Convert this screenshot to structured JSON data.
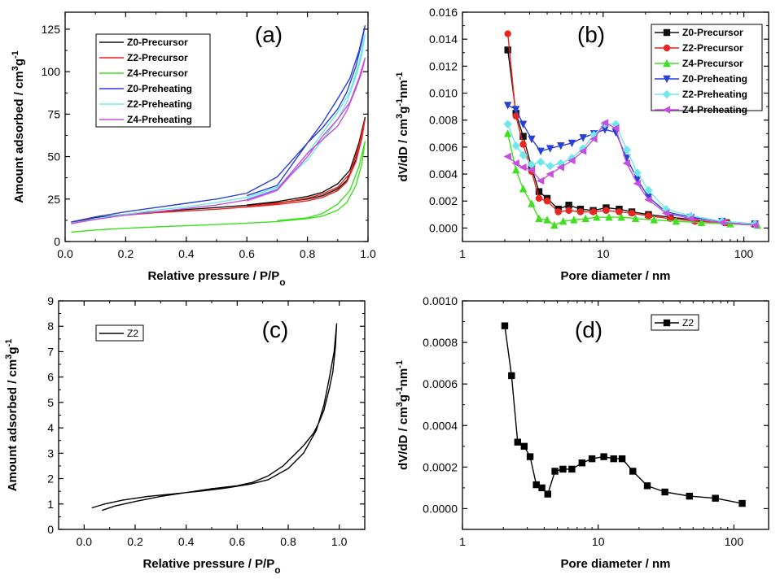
{
  "chart_data": [
    {
      "id": "a",
      "type": "line",
      "panel_label": "(a)",
      "xlabel": "Relative pressure / P/P",
      "xlabel_sub": "o",
      "ylabel": "Amount adsorbed / cm³g⁻¹",
      "xlim": [
        0.0,
        1.0
      ],
      "ylim": [
        0,
        135
      ],
      "xticks": [
        0.0,
        0.2,
        0.4,
        0.6,
        0.8,
        1.0
      ],
      "xtick_labels": [
        "0.0",
        "0.2",
        "0.4",
        "0.6",
        "0.8",
        "1.0"
      ],
      "yticks": [
        0,
        25,
        50,
        75,
        100,
        125
      ],
      "ytick_labels": [
        "0",
        "25",
        "50",
        "75",
        "100",
        "125"
      ],
      "legend_placement": "top-left",
      "series": [
        {
          "name": "Z0-Precursor",
          "color": "#111111",
          "marker": "none",
          "x": [
            0.02,
            0.1,
            0.2,
            0.3,
            0.4,
            0.5,
            0.6,
            0.7,
            0.8,
            0.85,
            0.9,
            0.93,
            0.96,
            0.98,
            0.99,
            0.97,
            0.94,
            0.9,
            0.85,
            0.8,
            0.7,
            0.6
          ],
          "y": [
            11.5,
            14,
            16,
            17.5,
            18.8,
            20,
            21.3,
            22.8,
            25,
            27,
            31,
            36,
            48,
            62,
            73,
            58,
            42,
            34,
            29,
            26.5,
            23.5,
            21.5
          ]
        },
        {
          "name": "Z2-Precursor",
          "color": "#e8251e",
          "marker": "none",
          "x": [
            0.02,
            0.1,
            0.2,
            0.3,
            0.4,
            0.5,
            0.6,
            0.7,
            0.8,
            0.85,
            0.9,
            0.93,
            0.96,
            0.98,
            0.99,
            0.97,
            0.94,
            0.9,
            0.85,
            0.8,
            0.7,
            0.6
          ],
          "y": [
            10.5,
            13.5,
            15.5,
            17,
            18,
            19,
            20.3,
            21.8,
            24,
            26,
            30,
            35,
            47,
            61,
            72,
            56,
            40,
            32,
            28,
            25.5,
            22.5,
            20.8
          ]
        },
        {
          "name": "Z4-Precursor",
          "color": "#3ee01e",
          "marker": "none",
          "x": [
            0.02,
            0.1,
            0.2,
            0.3,
            0.4,
            0.5,
            0.6,
            0.7,
            0.8,
            0.85,
            0.9,
            0.93,
            0.96,
            0.98,
            0.99,
            0.97,
            0.94,
            0.9,
            0.85,
            0.8,
            0.7
          ],
          "y": [
            5.5,
            6.8,
            7.8,
            8.6,
            9.3,
            10,
            10.8,
            11.8,
            13.5,
            15,
            18.5,
            23,
            33,
            46,
            59,
            44,
            30,
            22,
            16.5,
            14,
            12.3
          ]
        },
        {
          "name": "Z0-Preheating",
          "color": "#2a3fd6",
          "marker": "none",
          "x": [
            0.02,
            0.1,
            0.2,
            0.3,
            0.4,
            0.5,
            0.6,
            0.7,
            0.8,
            0.85,
            0.9,
            0.93,
            0.96,
            0.98,
            0.99,
            0.97,
            0.94,
            0.9,
            0.85,
            0.8,
            0.7,
            0.6
          ],
          "y": [
            11.5,
            14.5,
            17.5,
            20,
            22.5,
            25,
            28.5,
            38,
            58,
            67,
            78,
            88,
            103,
            118,
            127,
            112,
            96,
            84,
            70,
            58,
            33,
            27
          ]
        },
        {
          "name": "Z2-Preheating",
          "color": "#6ee8ec",
          "marker": "none",
          "x": [
            0.02,
            0.1,
            0.2,
            0.3,
            0.4,
            0.5,
            0.6,
            0.7,
            0.8,
            0.85,
            0.9,
            0.93,
            0.96,
            0.98,
            0.99,
            0.97,
            0.94,
            0.9,
            0.85,
            0.8,
            0.7,
            0.6
          ],
          "y": [
            10.5,
            13.5,
            16,
            18.5,
            20.5,
            23,
            26,
            32,
            48,
            60,
            72,
            82,
            97,
            110,
            122,
            105,
            88,
            76,
            64,
            52,
            31,
            25
          ]
        },
        {
          "name": "Z4-Preheating",
          "color": "#c64fe0",
          "marker": "none",
          "x": [
            0.02,
            0.1,
            0.2,
            0.3,
            0.4,
            0.5,
            0.6,
            0.7,
            0.8,
            0.85,
            0.9,
            0.93,
            0.96,
            0.98,
            0.99,
            0.97,
            0.94,
            0.9,
            0.85,
            0.8,
            0.7,
            0.6
          ],
          "y": [
            10.5,
            13,
            15.5,
            17.5,
            19.5,
            21.5,
            24.5,
            30.5,
            52,
            60,
            68,
            77,
            90,
            100,
            108,
            96,
            82,
            72,
            62,
            50,
            30,
            24
          ]
        }
      ]
    },
    {
      "id": "b",
      "type": "line",
      "panel_label": "(b)",
      "xlabel": "Pore diameter / nm",
      "ylabel": "dV/dD / cm³g⁻¹nm⁻¹",
      "xscale": "log",
      "xlim": [
        1,
        150
      ],
      "ylim": [
        -0.001,
        0.016
      ],
      "xticks": [
        1,
        10,
        100
      ],
      "xtick_labels": [
        "1",
        "10",
        "100"
      ],
      "yticks": [
        0.0,
        0.002,
        0.004,
        0.006,
        0.008,
        0.01,
        0.012,
        0.014,
        0.016
      ],
      "ytick_labels": [
        "0.000",
        "0.002",
        "0.004",
        "0.006",
        "0.008",
        "0.010",
        "0.012",
        "0.014",
        "0.016"
      ],
      "legend_placement": "top-right",
      "series": [
        {
          "name": "Z0-Precursor",
          "color": "#111111",
          "marker": "square",
          "x": [
            2.1,
            2.4,
            2.7,
            3.1,
            3.5,
            4.0,
            4.8,
            5.7,
            6.9,
            8.5,
            10.5,
            13,
            16,
            21,
            30,
            45,
            75,
            120
          ],
          "y": [
            0.0132,
            0.0085,
            0.0068,
            0.0045,
            0.0027,
            0.0022,
            0.0014,
            0.0017,
            0.0014,
            0.0013,
            0.0015,
            0.0014,
            0.0012,
            0.001,
            0.0008,
            0.0006,
            0.0004,
            0.0003
          ]
        },
        {
          "name": "Z2-Precursor",
          "color": "#e8251e",
          "marker": "circle",
          "x": [
            2.1,
            2.4,
            2.7,
            3.1,
            3.5,
            4.0,
            4.8,
            5.7,
            6.9,
            8.5,
            10.5,
            13,
            16,
            21,
            30,
            45,
            75,
            120
          ],
          "y": [
            0.0144,
            0.0083,
            0.0062,
            0.0042,
            0.0022,
            0.002,
            0.0012,
            0.0013,
            0.0012,
            0.0012,
            0.0013,
            0.0012,
            0.0011,
            0.0009,
            0.0007,
            0.0005,
            0.0004,
            0.0003
          ]
        },
        {
          "name": "Z4-Precursor",
          "color": "#3ee01e",
          "marker": "triangle-up",
          "x": [
            2.1,
            2.4,
            2.7,
            3.1,
            3.5,
            4.0,
            4.5,
            5.2,
            6.2,
            7.5,
            9.0,
            11,
            13.5,
            17,
            23,
            33,
            50,
            80,
            125
          ],
          "y": [
            0.007,
            0.0043,
            0.0029,
            0.0018,
            0.0007,
            0.0006,
            0.0002,
            0.0005,
            0.0006,
            0.0007,
            0.0008,
            0.0008,
            0.0008,
            0.0007,
            0.0006,
            0.0005,
            0.0004,
            0.0003,
            0.0002
          ]
        },
        {
          "name": "Z0-Preheating",
          "color": "#2a3fd6",
          "marker": "triangle-down",
          "x": [
            2.1,
            2.4,
            2.7,
            3.1,
            3.6,
            4.2,
            5.0,
            6.0,
            7.2,
            8.6,
            10.3,
            12.3,
            14.7,
            17.5,
            21,
            28,
            42,
            70,
            120
          ],
          "y": [
            0.0091,
            0.0088,
            0.0077,
            0.0066,
            0.0057,
            0.0059,
            0.0061,
            0.0063,
            0.0067,
            0.007,
            0.0073,
            0.0071,
            0.0052,
            0.0036,
            0.0023,
            0.0012,
            0.0008,
            0.0005,
            0.0003
          ]
        },
        {
          "name": "Z2-Preheating",
          "color": "#6ee8ec",
          "marker": "diamond",
          "x": [
            2.1,
            2.4,
            2.7,
            3.1,
            3.6,
            4.2,
            5.0,
            6.0,
            7.2,
            8.6,
            10.3,
            12.3,
            14.7,
            17.5,
            21,
            28,
            42,
            70,
            120
          ],
          "y": [
            0.0077,
            0.0061,
            0.0054,
            0.0047,
            0.0049,
            0.0046,
            0.0048,
            0.0052,
            0.0059,
            0.0069,
            0.0077,
            0.0077,
            0.0058,
            0.0041,
            0.0028,
            0.0014,
            0.0009,
            0.0005,
            0.0003
          ]
        },
        {
          "name": "Z4-Preheating",
          "color": "#c64fe0",
          "marker": "triangle-left",
          "x": [
            2.1,
            2.4,
            2.7,
            3.1,
            3.6,
            4.2,
            5.0,
            6.0,
            7.2,
            8.6,
            10.3,
            12.3,
            14.7,
            17.5,
            21,
            28,
            42,
            70,
            120
          ],
          "y": [
            0.0053,
            0.0048,
            0.0045,
            0.0043,
            0.0035,
            0.004,
            0.0045,
            0.005,
            0.0057,
            0.0066,
            0.0078,
            0.0074,
            0.0048,
            0.0033,
            0.0021,
            0.0011,
            0.0007,
            0.0004,
            0.0002
          ]
        }
      ]
    },
    {
      "id": "c",
      "type": "line",
      "panel_label": "(c)",
      "xlabel": "Relative pressure / P/P",
      "xlabel_sub": "o",
      "ylabel": "Amount adsorbed / cm³g⁻¹",
      "xlim": [
        -0.1,
        1.1
      ],
      "ylim": [
        0,
        9
      ],
      "xticks": [
        0.0,
        0.2,
        0.4,
        0.6,
        0.8,
        1.0
      ],
      "xtick_labels": [
        "0.0",
        "0.2",
        "0.4",
        "0.6",
        "0.8",
        "1.0"
      ],
      "yticks": [
        0,
        1,
        2,
        3,
        4,
        5,
        6,
        7,
        8,
        9
      ],
      "ytick_labels": [
        "0",
        "1",
        "2",
        "3",
        "4",
        "5",
        "6",
        "7",
        "8",
        "9"
      ],
      "legend_placement": "top-left",
      "series": [
        {
          "name": "Z2",
          "color": "#000000",
          "marker": "none",
          "x": [
            0.03,
            0.08,
            0.15,
            0.25,
            0.35,
            0.45,
            0.55,
            0.65,
            0.72,
            0.8,
            0.86,
            0.91,
            0.94,
            0.96,
            0.98,
            0.99,
            0.985,
            0.975,
            0.96,
            0.94,
            0.92,
            0.9,
            0.86,
            0.82,
            0.78,
            0.72,
            0.66,
            0.6,
            0.5,
            0.4,
            0.3,
            0.2,
            0.12,
            0.07
          ],
          "y": [
            0.85,
            1.0,
            1.15,
            1.3,
            1.4,
            1.5,
            1.62,
            1.78,
            1.95,
            2.4,
            3.0,
            3.9,
            4.9,
            5.9,
            7.0,
            8.1,
            7.2,
            6.2,
            5.5,
            4.7,
            4.2,
            3.8,
            3.3,
            2.9,
            2.5,
            2.1,
            1.85,
            1.72,
            1.6,
            1.45,
            1.3,
            1.1,
            0.92,
            0.75
          ]
        }
      ]
    },
    {
      "id": "d",
      "type": "line",
      "panel_label": "(d)",
      "xlabel": "Pore diameter / nm",
      "ylabel": "dV/dD / cm³g⁻¹nm⁻¹",
      "xscale": "log",
      "xlim": [
        1,
        180
      ],
      "ylim": [
        -0.0001,
        0.001
      ],
      "xticks": [
        1,
        10,
        100
      ],
      "xtick_labels": [
        "1",
        "10",
        "100"
      ],
      "yticks": [
        0.0,
        0.0002,
        0.0004,
        0.0006,
        0.0008,
        0.001
      ],
      "ytick_labels": [
        "0.0000",
        "0.0002",
        "0.0004",
        "0.0006",
        "0.0008",
        "0.0010"
      ],
      "legend_placement": "top-right",
      "series": [
        {
          "name": "Z2",
          "color": "#000000",
          "marker": "square",
          "x": [
            2.05,
            2.3,
            2.55,
            2.85,
            3.15,
            3.5,
            3.85,
            4.25,
            4.8,
            5.5,
            6.4,
            7.6,
            9.0,
            11,
            13,
            15,
            18,
            23,
            31,
            47,
            73,
            115
          ],
          "y": [
            0.00088,
            0.00064,
            0.00032,
            0.0003,
            0.00025,
            0.000115,
            0.0001,
            7e-05,
            0.00018,
            0.00019,
            0.00019,
            0.00022,
            0.00024,
            0.00025,
            0.00024,
            0.00024,
            0.00018,
            0.00011,
            8e-05,
            6e-05,
            5e-05,
            2.5e-05
          ]
        }
      ]
    }
  ]
}
